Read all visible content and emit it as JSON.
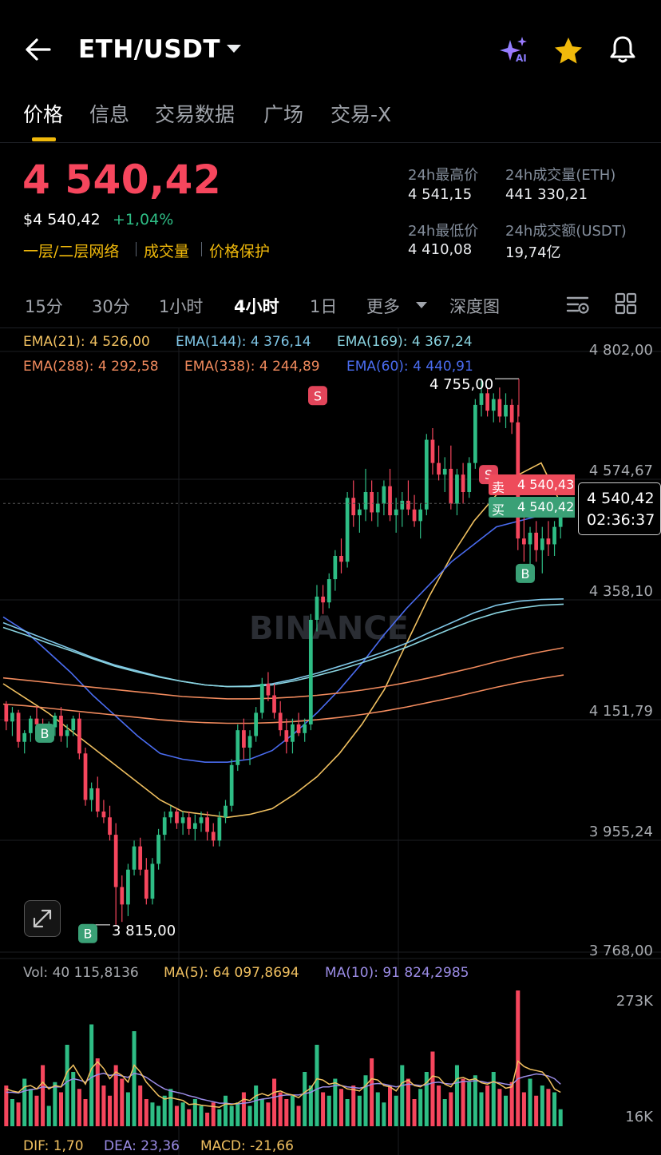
{
  "header": {
    "back_icon": "arrow-left-icon",
    "pair": "ETH/USDT",
    "ai_icon": "sparkle-ai-icon",
    "ai_label": "AI",
    "favorite_icon": "star-icon",
    "bell_icon": "bell-icon"
  },
  "tabs": [
    {
      "label": "价格",
      "active": true
    },
    {
      "label": "信息"
    },
    {
      "label": "交易数据"
    },
    {
      "label": "广场"
    },
    {
      "label": "交易-X"
    }
  ],
  "price": {
    "last": "4 540,42",
    "usd": "$4 540,42",
    "change": "+1,04%",
    "tags": [
      "一层/二层网络",
      "成交量",
      "价格保护"
    ]
  },
  "stats": {
    "high_label": "24h最高价",
    "high": "4 541,15",
    "vol_eth_label": "24h成交量(ETH)",
    "vol_eth": "441 330,21",
    "low_label": "24h最低价",
    "low": "4 410,08",
    "vol_usdt_label": "24h成交额(USDT)",
    "vol_usdt": "19,74亿"
  },
  "intervals": [
    "15分",
    "30分",
    "1小时",
    "4小时",
    "1日",
    "更多",
    "深度图"
  ],
  "active_interval": "4小时",
  "toolbar_icons": [
    "indicator-settings-icon",
    "grid-layout-icon"
  ],
  "ema": [
    {
      "label": "EMA(21): 4 526,00",
      "color": "#f0c060"
    },
    {
      "label": "EMA(144): 4 376,14",
      "color": "#7fc6e6"
    },
    {
      "label": "EMA(169): 4 367,24",
      "color": "#8ad4e0"
    },
    {
      "label": "EMA(288): 4 292,58",
      "color": "#f08a5d"
    },
    {
      "label": "EMA(338): 4 244,89",
      "color": "#f08a5d"
    },
    {
      "label": "EMA(60): 4 440,91",
      "color": "#4a6cf0"
    }
  ],
  "watermark": "BINANCE",
  "chart_data": {
    "type": "candlestick",
    "y_ticks": [
      "4 802,00",
      "4 574,67",
      "4 358,10",
      "4 151,79",
      "3 955,24",
      "3 768,00"
    ],
    "ylim": [
      3768.0,
      4802.0
    ],
    "high_label": "4 755,00",
    "low_label": "3 815,00",
    "markers": [
      {
        "type": "S",
        "price": 4726
      },
      {
        "type": "S",
        "price": 4590
      },
      {
        "type": "B",
        "price": 4145
      },
      {
        "type": "B",
        "price": 3800
      },
      {
        "type": "B",
        "price": 4420
      }
    ],
    "last_price_box": "4 540,42",
    "countdown": "02:36:37",
    "sell_label": "卖",
    "sell_price": "4 540,43",
    "buy_label": "买",
    "buy_price": "4 540,42",
    "ohlc": [
      [
        4195,
        4200,
        4150,
        4165
      ],
      [
        4165,
        4190,
        4140,
        4180
      ],
      [
        4180,
        4185,
        4120,
        4130
      ],
      [
        4130,
        4150,
        4110,
        4145
      ],
      [
        4145,
        4175,
        4130,
        4170
      ],
      [
        4170,
        4190,
        4150,
        4160
      ],
      [
        4160,
        4170,
        4135,
        4140
      ],
      [
        4140,
        4165,
        4130,
        4155
      ],
      [
        4155,
        4180,
        4140,
        4175
      ],
      [
        4175,
        4190,
        4130,
        4140
      ],
      [
        4140,
        4160,
        4120,
        4150
      ],
      [
        4150,
        4175,
        4140,
        4170
      ],
      [
        4170,
        4180,
        4100,
        4110
      ],
      [
        4110,
        4120,
        4020,
        4030
      ],
      [
        4030,
        4060,
        4010,
        4050
      ],
      [
        4050,
        4070,
        4000,
        4010
      ],
      [
        4010,
        4030,
        3990,
        4000
      ],
      [
        4000,
        4020,
        3960,
        3970
      ],
      [
        3970,
        3990,
        3815,
        3880
      ],
      [
        3880,
        3900,
        3820,
        3850
      ],
      [
        3850,
        3920,
        3830,
        3910
      ],
      [
        3910,
        3960,
        3900,
        3950
      ],
      [
        3950,
        3965,
        3900,
        3910
      ],
      [
        3910,
        3930,
        3850,
        3860
      ],
      [
        3860,
        3930,
        3850,
        3920
      ],
      [
        3920,
        3980,
        3910,
        3970
      ],
      [
        3970,
        4010,
        3960,
        4000
      ],
      [
        4000,
        4020,
        3990,
        4010
      ],
      [
        4010,
        4015,
        3980,
        3990
      ],
      [
        3990,
        4010,
        3970,
        4000
      ],
      [
        4000,
        4010,
        3970,
        3980
      ],
      [
        3980,
        4005,
        3960,
        3990
      ],
      [
        3990,
        4010,
        3975,
        4000
      ],
      [
        4000,
        4010,
        3960,
        3975
      ],
      [
        3975,
        3990,
        3950,
        3960
      ],
      [
        3960,
        4010,
        3950,
        4000
      ],
      [
        4000,
        4030,
        3990,
        4020
      ],
      [
        4020,
        4100,
        4010,
        4090
      ],
      [
        4090,
        4160,
        4080,
        4150
      ],
      [
        4150,
        4170,
        4100,
        4120
      ],
      [
        4120,
        4150,
        4090,
        4140
      ],
      [
        4140,
        4190,
        4130,
        4180
      ],
      [
        4180,
        4240,
        4170,
        4230
      ],
      [
        4230,
        4250,
        4200,
        4210
      ],
      [
        4210,
        4230,
        4170,
        4180
      ],
      [
        4180,
        4200,
        4140,
        4150
      ],
      [
        4150,
        4170,
        4110,
        4130
      ],
      [
        4130,
        4170,
        4110,
        4160
      ],
      [
        4160,
        4180,
        4140,
        4145
      ],
      [
        4145,
        4170,
        4130,
        4160
      ],
      [
        4160,
        4350,
        4150,
        4340
      ],
      [
        4340,
        4400,
        4320,
        4380
      ],
      [
        4380,
        4400,
        4350,
        4370
      ],
      [
        4370,
        4420,
        4360,
        4410
      ],
      [
        4410,
        4460,
        4390,
        4450
      ],
      [
        4450,
        4480,
        4420,
        4440
      ],
      [
        4440,
        4560,
        4430,
        4550
      ],
      [
        4550,
        4580,
        4500,
        4520
      ],
      [
        4520,
        4540,
        4490,
        4530
      ],
      [
        4530,
        4600,
        4510,
        4560
      ],
      [
        4560,
        4580,
        4510,
        4525
      ],
      [
        4525,
        4560,
        4500,
        4540
      ],
      [
        4540,
        4580,
        4520,
        4570
      ],
      [
        4570,
        4600,
        4510,
        4520
      ],
      [
        4520,
        4550,
        4490,
        4530
      ],
      [
        4530,
        4560,
        4500,
        4545
      ],
      [
        4545,
        4580,
        4520,
        4530
      ],
      [
        4530,
        4555,
        4500,
        4510
      ],
      [
        4510,
        4540,
        4480,
        4530
      ],
      [
        4530,
        4660,
        4520,
        4650
      ],
      [
        4650,
        4670,
        4590,
        4610
      ],
      [
        4610,
        4640,
        4580,
        4590
      ],
      [
        4590,
        4620,
        4560,
        4600
      ],
      [
        4600,
        4640,
        4530,
        4540
      ],
      [
        4540,
        4600,
        4520,
        4590
      ],
      [
        4590,
        4610,
        4540,
        4560
      ],
      [
        4560,
        4620,
        4550,
        4610
      ],
      [
        4610,
        4720,
        4600,
        4710
      ],
      [
        4710,
        4755,
        4690,
        4730
      ],
      [
        4730,
        4740,
        4690,
        4700
      ],
      [
        4700,
        4730,
        4680,
        4720
      ],
      [
        4720,
        4740,
        4680,
        4690
      ],
      [
        4690,
        4730,
        4670,
        4710
      ],
      [
        4710,
        4720,
        4660,
        4680
      ],
      [
        4680,
        4710,
        4460,
        4480
      ],
      [
        4480,
        4520,
        4440,
        4470
      ],
      [
        4470,
        4500,
        4430,
        4490
      ],
      [
        4490,
        4510,
        4440,
        4460
      ],
      [
        4460,
        4500,
        4420,
        4480
      ],
      [
        4480,
        4510,
        4450,
        4470
      ],
      [
        4470,
        4510,
        4450,
        4500
      ],
      [
        4500,
        4550,
        4480,
        4540
      ]
    ],
    "ema_series": {
      "EMA(21)": [
        4230,
        4205,
        4180,
        4150,
        4120,
        4090,
        4060,
        4030,
        4010,
        4005,
        4000,
        4005,
        4015,
        4040,
        4070,
        4110,
        4160,
        4220,
        4300,
        4380,
        4450,
        4510,
        4555,
        4590,
        4610,
        4530
      ],
      "EMA(60)": [
        4345,
        4320,
        4285,
        4250,
        4210,
        4175,
        4140,
        4110,
        4100,
        4095,
        4095,
        4100,
        4115,
        4145,
        4180,
        4220,
        4265,
        4315,
        4360,
        4400,
        4440,
        4470,
        4500,
        4510,
        4520,
        4530
      ],
      "EMA(144)": [
        4335,
        4320,
        4305,
        4290,
        4275,
        4262,
        4252,
        4242,
        4234,
        4228,
        4225,
        4226,
        4230,
        4238,
        4248,
        4260,
        4272,
        4285,
        4300,
        4318,
        4335,
        4352,
        4365,
        4372,
        4375,
        4376
      ],
      "EMA(169)": [
        4327,
        4314,
        4300,
        4287,
        4273,
        4260,
        4250,
        4241,
        4234,
        4228,
        4225,
        4225,
        4228,
        4235,
        4244,
        4254,
        4266,
        4279,
        4293,
        4309,
        4325,
        4340,
        4352,
        4360,
        4365,
        4367
      ],
      "EMA(288)": [
        4240,
        4236,
        4232,
        4228,
        4224,
        4220,
        4216,
        4212,
        4208,
        4206,
        4204,
        4204,
        4205,
        4207,
        4210,
        4214,
        4219,
        4225,
        4232,
        4240,
        4249,
        4258,
        4268,
        4277,
        4285,
        4292
      ],
      "EMA(338)": [
        4195,
        4192,
        4188,
        4184,
        4180,
        4176,
        4172,
        4168,
        4165,
        4163,
        4162,
        4162,
        4163,
        4165,
        4168,
        4172,
        4177,
        4183,
        4190,
        4198,
        4206,
        4215,
        4224,
        4232,
        4239,
        4245
      ]
    }
  },
  "volume": {
    "legend_vol": "Vol: 40 115,8136",
    "legend_ma5": "MA(5): 64 097,8694",
    "legend_ma10": "MA(10): 91 824,2985",
    "max_tick": "273K",
    "min_tick": "16K",
    "bars": [
      60,
      40,
      35,
      70,
      55,
      45,
      90,
      30,
      65,
      50,
      120,
      80,
      55,
      40,
      150,
      100,
      60,
      45,
      90,
      70,
      50,
      140,
      60,
      40,
      35,
      30,
      45,
      55,
      30,
      35,
      25,
      40,
      30,
      20,
      35,
      25,
      45,
      30,
      35,
      50,
      30,
      60,
      40,
      35,
      70,
      50,
      40,
      45,
      30,
      80,
      60,
      120,
      50,
      45,
      70,
      55,
      40,
      60,
      45,
      75,
      100,
      50,
      35,
      60,
      45,
      90,
      70,
      40,
      55,
      80,
      110,
      60,
      40,
      50,
      90,
      70,
      65,
      75,
      50,
      60,
      80,
      55,
      45,
      65,
      200,
      50,
      70,
      45,
      60,
      55,
      50,
      25
    ],
    "ma5": [
      55,
      52,
      50,
      58,
      60,
      55,
      65,
      55,
      60,
      58,
      80,
      90,
      75,
      62,
      85,
      95,
      85,
      70,
      80,
      75,
      65,
      90,
      80,
      65,
      55,
      45,
      40,
      42,
      40,
      38,
      32,
      33,
      31,
      30,
      29,
      28,
      33,
      32,
      34,
      40,
      38,
      45,
      48,
      45,
      50,
      52,
      48,
      46,
      42,
      50,
      56,
      70,
      68,
      62,
      64,
      60,
      55,
      54,
      52,
      60,
      70,
      68,
      60,
      58,
      52,
      64,
      68,
      60,
      58,
      64,
      74,
      72,
      62,
      58,
      70,
      72,
      68,
      70,
      64,
      62,
      66,
      62,
      56,
      58,
      96,
      88,
      84,
      82,
      80,
      70,
      55,
      50
    ],
    "ma10": [
      50,
      50,
      49,
      52,
      54,
      55,
      58,
      57,
      58,
      58,
      66,
      70,
      68,
      65,
      72,
      76,
      78,
      75,
      76,
      74,
      72,
      78,
      76,
      72,
      66,
      60,
      55,
      52,
      50,
      48,
      45,
      43,
      40,
      38,
      36,
      34,
      34,
      33,
      33,
      34,
      35,
      38,
      40,
      41,
      43,
      45,
      46,
      46,
      46,
      48,
      50,
      55,
      58,
      58,
      60,
      60,
      58,
      57,
      56,
      58,
      62,
      63,
      62,
      60,
      58,
      60,
      62,
      61,
      60,
      61,
      64,
      65,
      63,
      62,
      64,
      66,
      66,
      67,
      66,
      64,
      65,
      64,
      62,
      61,
      70,
      73,
      75,
      77,
      76,
      74,
      70,
      62
    ]
  },
  "macd": {
    "dif": "DIF: 1,70",
    "dea": "DEA: 23,36",
    "macd": "MACD: -21,66"
  },
  "colors": {
    "up": "#2ebd85",
    "down": "#f6465d",
    "accent": "#f0b90b",
    "ma5": "#f0c060",
    "ma10": "#9b8ce6"
  },
  "expand_icon": "expand-arrows-icon"
}
